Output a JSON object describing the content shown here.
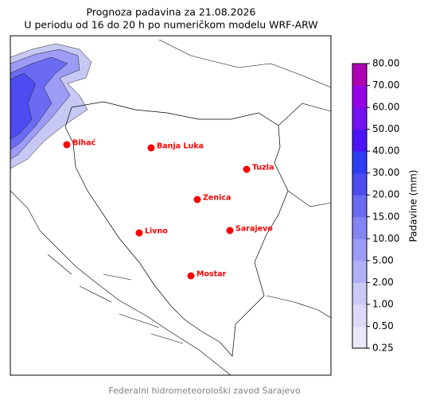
{
  "header": {
    "title": "Prognoza padavina za 21.08.2026",
    "subtitle": "U periodu od 16 do 20 h po numeričkom modelu WRF-ARW"
  },
  "map": {
    "cities": [
      "Bihać",
      "Banja Luka",
      "Tuzla",
      "Zenica",
      "Livno",
      "Sarajevo",
      "Mostar"
    ],
    "city_color": "#ff0000"
  },
  "colorbar": {
    "label": "Padavine (mm)",
    "ticks": [
      {
        "value": 0.25,
        "label": "0.25"
      },
      {
        "value": 0.5,
        "label": "0.50"
      },
      {
        "value": 1,
        "label": "1.00"
      },
      {
        "value": 2,
        "label": "2.00"
      },
      {
        "value": 5,
        "label": "5.00"
      },
      {
        "value": 10,
        "label": "10.00"
      },
      {
        "value": 15,
        "label": "15.00"
      },
      {
        "value": 20,
        "label": "20.00"
      },
      {
        "value": 30,
        "label": "30.00"
      },
      {
        "value": 40,
        "label": "40.00"
      },
      {
        "value": 50,
        "label": "50.00"
      },
      {
        "value": 60,
        "label": "60.00"
      },
      {
        "value": 70,
        "label": "70.00"
      },
      {
        "value": 80,
        "label": "80.00"
      }
    ],
    "colors": [
      "#ece8fa",
      "#dcdaf8",
      "#cacaf6",
      "#b0b0f6",
      "#9c9cf6",
      "#8484f4",
      "#6a6af2",
      "#4c4cf2",
      "#2e3cf4",
      "#4a14f6",
      "#7410f2",
      "#9600e8",
      "#b000b4"
    ]
  },
  "footer": "Federalni hidrometeorološki zavod Sarajevo"
}
